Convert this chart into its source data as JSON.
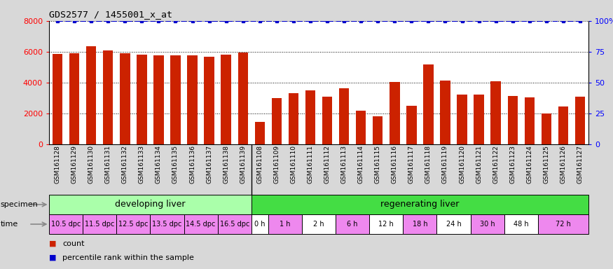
{
  "title": "GDS2577 / 1455001_x_at",
  "samples": [
    "GSM161128",
    "GSM161129",
    "GSM161130",
    "GSM161131",
    "GSM161132",
    "GSM161133",
    "GSM161134",
    "GSM161135",
    "GSM161136",
    "GSM161137",
    "GSM161138",
    "GSM161139",
    "GSM161108",
    "GSM161109",
    "GSM161110",
    "GSM161111",
    "GSM161112",
    "GSM161113",
    "GSM161114",
    "GSM161115",
    "GSM161116",
    "GSM161117",
    "GSM161118",
    "GSM161119",
    "GSM161120",
    "GSM161121",
    "GSM161122",
    "GSM161123",
    "GSM161124",
    "GSM161125",
    "GSM161126",
    "GSM161127"
  ],
  "counts": [
    5850,
    5900,
    6350,
    6100,
    5900,
    5820,
    5780,
    5760,
    5760,
    5700,
    5820,
    5950,
    1450,
    3000,
    3300,
    3500,
    3100,
    3650,
    2200,
    1800,
    4050,
    2500,
    5200,
    4150,
    3250,
    3250,
    4100,
    3150,
    3050,
    2000,
    2450,
    3100
  ],
  "percentiles": [
    100,
    100,
    100,
    100,
    100,
    100,
    100,
    100,
    100,
    100,
    100,
    100,
    100,
    100,
    100,
    100,
    100,
    100,
    100,
    100,
    100,
    100,
    100,
    100,
    100,
    100,
    100,
    100,
    100,
    100,
    100,
    100
  ],
  "bar_color": "#cc2200",
  "percentile_color": "#0000cc",
  "ylim_left": [
    0,
    8000
  ],
  "ylim_right": [
    0,
    100
  ],
  "yticks_left": [
    0,
    2000,
    4000,
    6000,
    8000
  ],
  "yticks_right": [
    0,
    25,
    50,
    75,
    100
  ],
  "ytick_labels_right": [
    "0",
    "25",
    "50",
    "75",
    "100%"
  ],
  "specimen_groups": [
    {
      "label": "developing liver",
      "start": 0,
      "end": 12,
      "color": "#aaffaa"
    },
    {
      "label": "regenerating liver",
      "start": 12,
      "end": 32,
      "color": "#44dd44"
    }
  ],
  "time_groups": [
    {
      "label": "10.5 dpc",
      "start": 0,
      "end": 2,
      "color": "#ee88ee"
    },
    {
      "label": "11.5 dpc",
      "start": 2,
      "end": 4,
      "color": "#ee88ee"
    },
    {
      "label": "12.5 dpc",
      "start": 4,
      "end": 6,
      "color": "#ee88ee"
    },
    {
      "label": "13.5 dpc",
      "start": 6,
      "end": 8,
      "color": "#ee88ee"
    },
    {
      "label": "14.5 dpc",
      "start": 8,
      "end": 10,
      "color": "#ee88ee"
    },
    {
      "label": "16.5 dpc",
      "start": 10,
      "end": 12,
      "color": "#ee88ee"
    },
    {
      "label": "0 h",
      "start": 12,
      "end": 13,
      "color": "#ffffff"
    },
    {
      "label": "1 h",
      "start": 13,
      "end": 15,
      "color": "#ee88ee"
    },
    {
      "label": "2 h",
      "start": 15,
      "end": 17,
      "color": "#ffffff"
    },
    {
      "label": "6 h",
      "start": 17,
      "end": 19,
      "color": "#ee88ee"
    },
    {
      "label": "12 h",
      "start": 19,
      "end": 21,
      "color": "#ffffff"
    },
    {
      "label": "18 h",
      "start": 21,
      "end": 23,
      "color": "#ee88ee"
    },
    {
      "label": "24 h",
      "start": 23,
      "end": 25,
      "color": "#ffffff"
    },
    {
      "label": "30 h",
      "start": 25,
      "end": 27,
      "color": "#ee88ee"
    },
    {
      "label": "48 h",
      "start": 27,
      "end": 29,
      "color": "#ffffff"
    },
    {
      "label": "72 h",
      "start": 29,
      "end": 32,
      "color": "#ee88ee"
    }
  ],
  "fig_bg_color": "#d8d8d8",
  "plot_bg_color": "#ffffff",
  "grid_color": "#000000",
  "legend_count_color": "#cc2200",
  "legend_pct_color": "#0000cc",
  "xtick_bg_color": "#cccccc"
}
